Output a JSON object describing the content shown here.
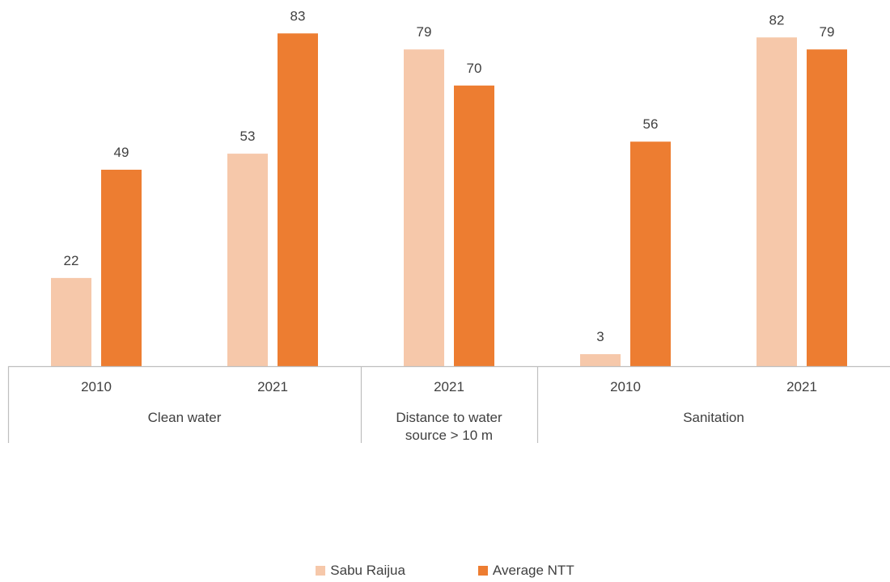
{
  "chart_data": {
    "type": "bar",
    "title": "",
    "xlabel": "",
    "ylabel": "",
    "ylim": [
      0,
      85
    ],
    "grid": false,
    "legend_position": "bottom",
    "groups": [
      {
        "label": "Clean water",
        "categories": [
          "2010",
          "2021"
        ]
      },
      {
        "label": "Distance to water source > 10 m",
        "categories": [
          "2021"
        ]
      },
      {
        "label": "Sanitation",
        "categories": [
          "2010",
          "2021"
        ]
      }
    ],
    "categories": [
      "2010",
      "2021",
      "2021",
      "2010",
      "2021"
    ],
    "series": [
      {
        "name": "Sabu Raijua",
        "color": "#f6c8aa",
        "values": [
          22,
          53,
          79,
          3,
          82
        ]
      },
      {
        "name": "Average NTT",
        "color": "#ed7d31",
        "values": [
          49,
          83,
          70,
          56,
          79
        ]
      }
    ]
  }
}
